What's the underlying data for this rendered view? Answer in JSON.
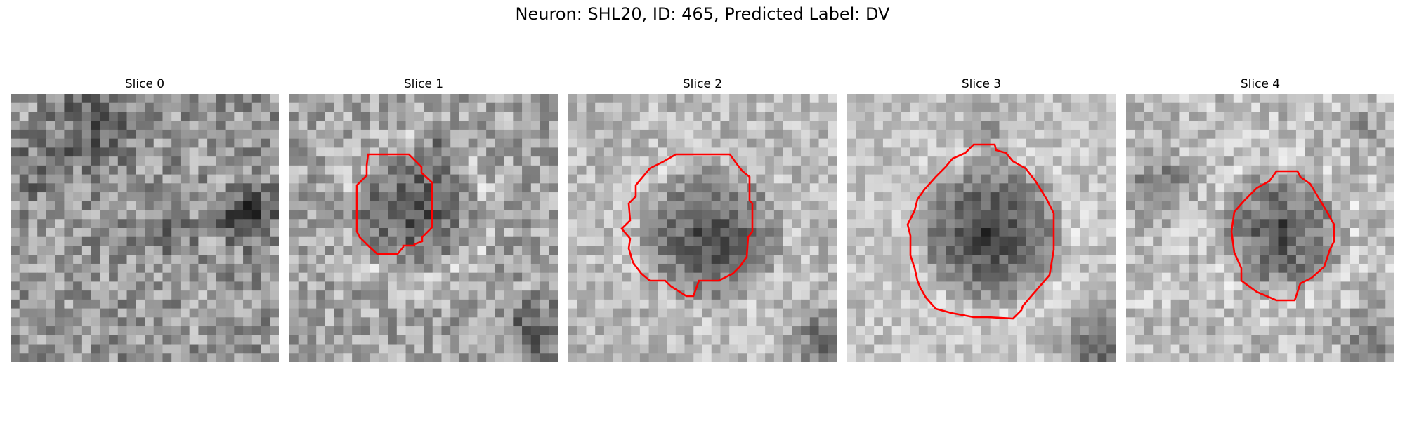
{
  "figure": {
    "title": "Neuron: SHL20, ID: 465, Predicted Label: DV"
  },
  "contour_color": "#ff0000",
  "panels": [
    {
      "title": "Slice 0",
      "has_contour": false,
      "grid_size": 30
    },
    {
      "title": "Slice 1",
      "has_contour": true,
      "grid_size": 30
    },
    {
      "title": "Slice 2",
      "has_contour": true,
      "grid_size": 30
    },
    {
      "title": "Slice 3",
      "has_contour": true,
      "grid_size": 30
    },
    {
      "title": "Slice 4",
      "has_contour": true,
      "grid_size": 30
    }
  ]
}
